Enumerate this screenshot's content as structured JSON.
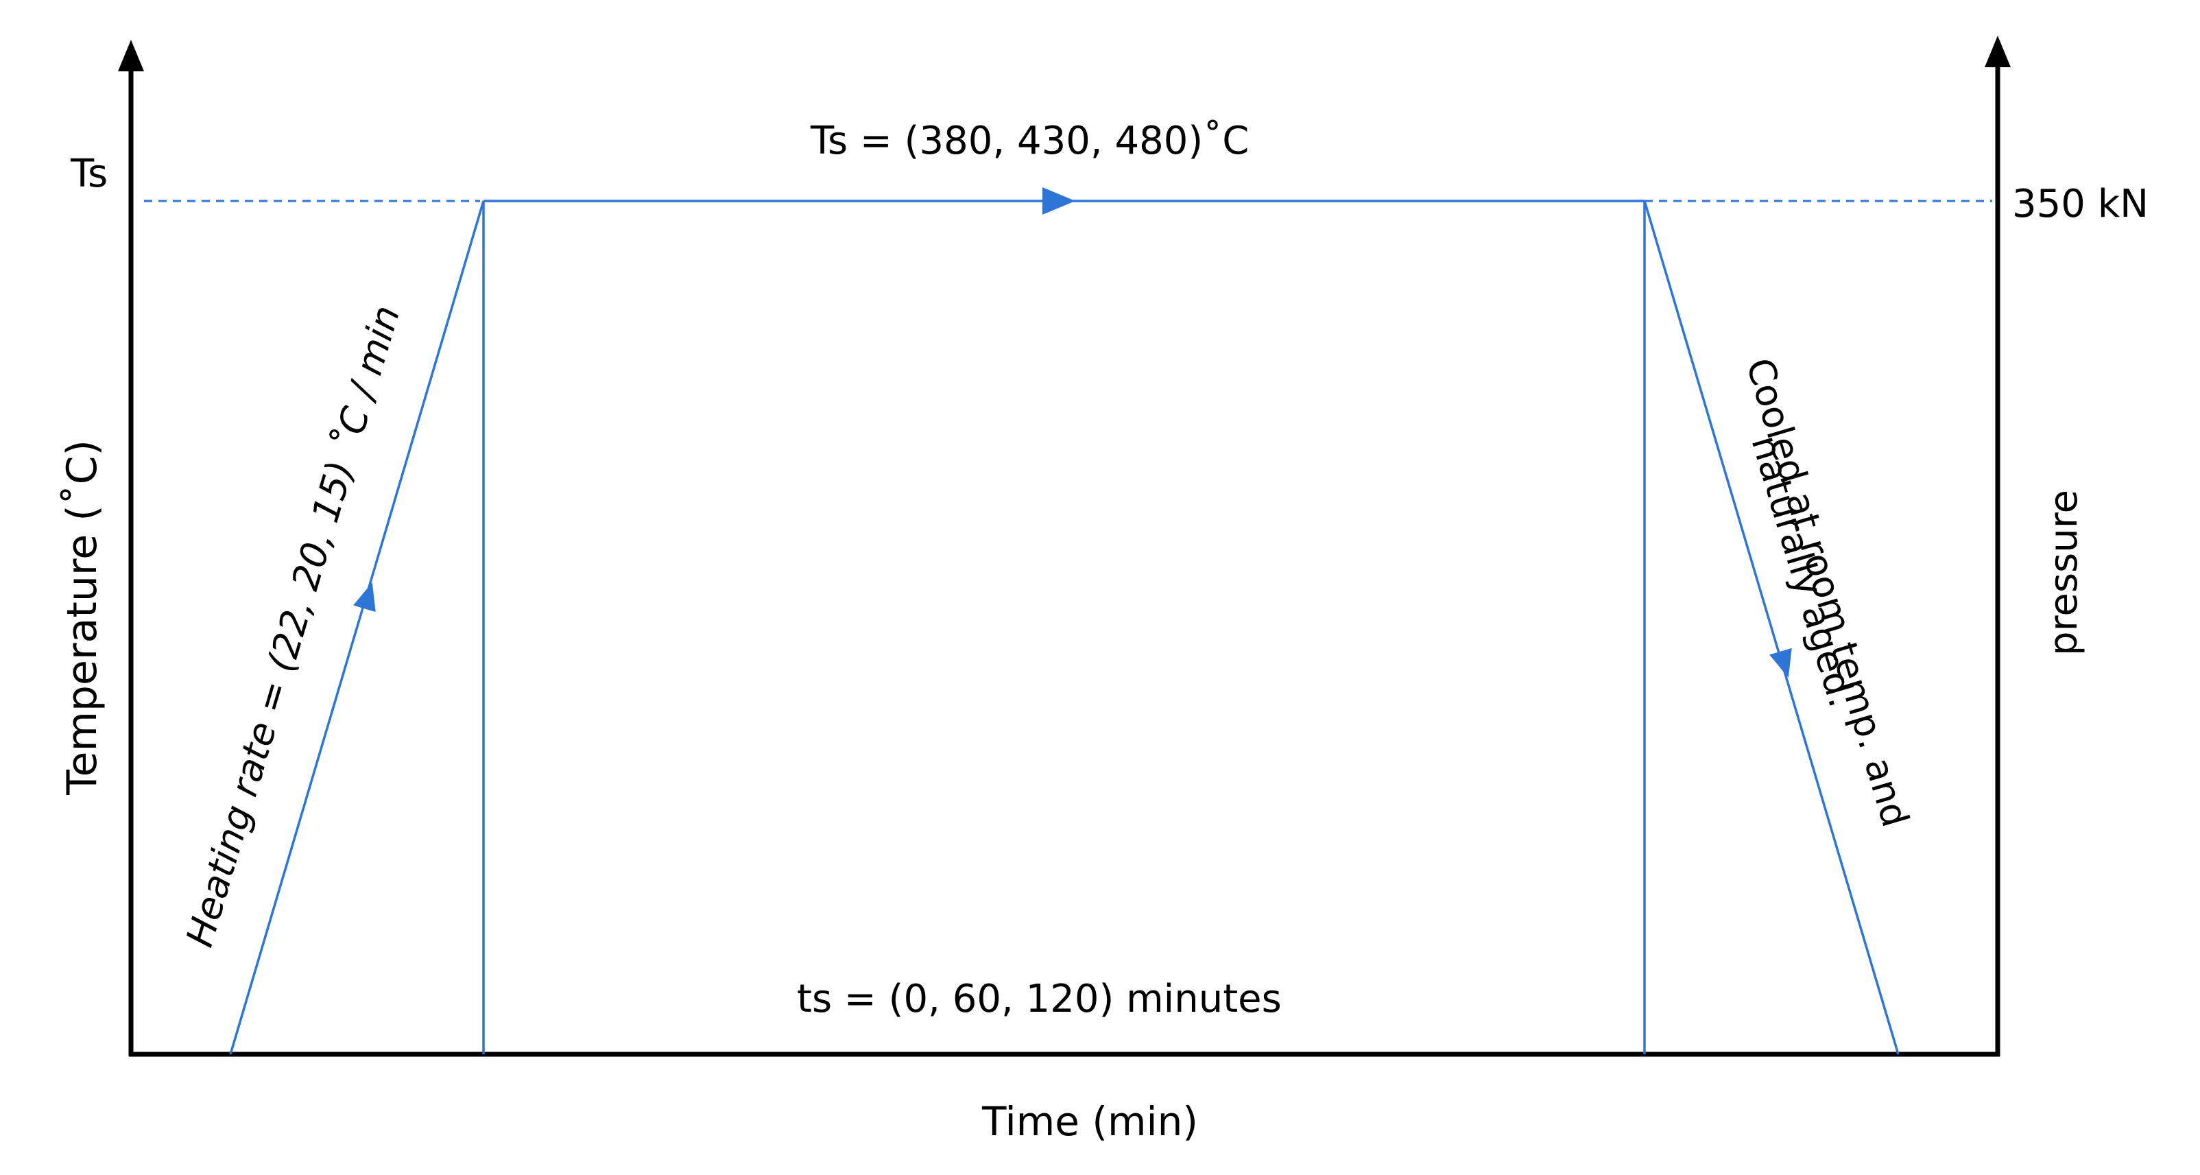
{
  "labels": {
    "y_axis_left": "Temperature (˚C)",
    "y_axis_right": "pressure",
    "x_axis": "Time (min)",
    "ts_tick": "Ts",
    "pressure_value": "350 kN",
    "hold_temperature": "Ts = (380, 430, 480)˚C",
    "hold_time": "ts = (0, 60, 120) minutes",
    "heating": "Heating rate = (22, 20, 15) ˚C / min",
    "cooling_line1": "Cooled at room temp. and",
    "cooling_line2": "naturally aged."
  },
  "colors": {
    "axis": "#000000",
    "profile": "#2e75d6",
    "text": "#000000"
  }
}
